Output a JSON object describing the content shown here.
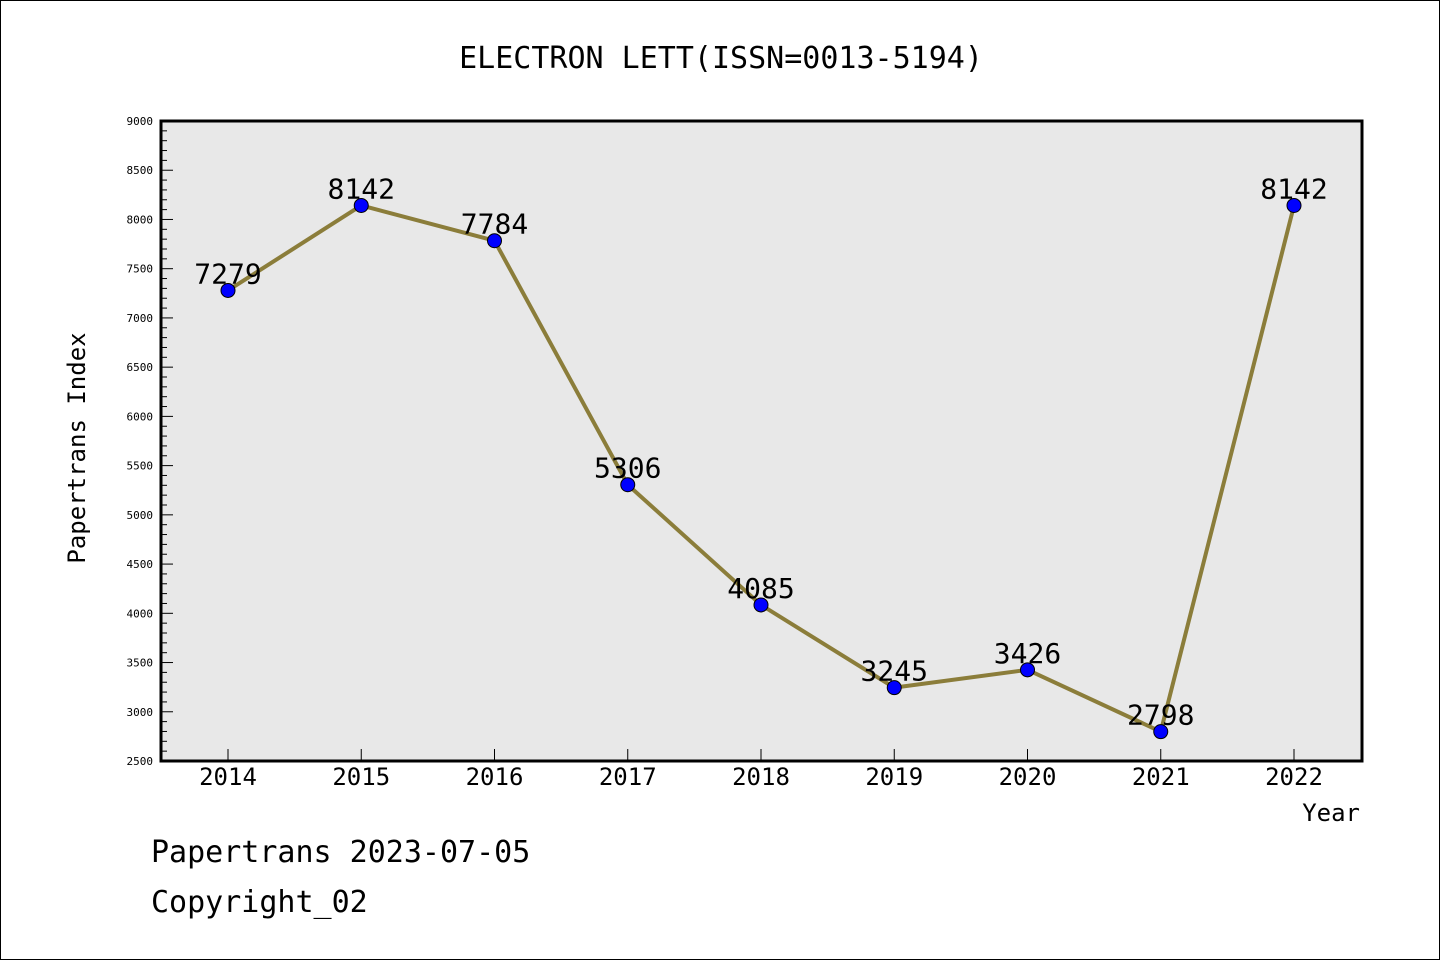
{
  "chart_data": {
    "type": "line",
    "title": "ELECTRON LETT(ISSN=0013-5194)",
    "xlabel": "Year",
    "ylabel": "Papertrans Index",
    "categories": [
      "2014",
      "2015",
      "2016",
      "2017",
      "2018",
      "2019",
      "2020",
      "2021",
      "2022"
    ],
    "series": [
      {
        "values": [
          7279,
          8142,
          7784,
          5306,
          4085,
          3245,
          3426,
          2798,
          8142
        ]
      }
    ],
    "data_labels": [
      "7279",
      "8142",
      "7784",
      "5306",
      "4085",
      "3245",
      "3426",
      "2798",
      "8142"
    ],
    "ylim": [
      2500,
      9000
    ],
    "yticks": [
      "2500",
      "3000",
      "3500",
      "4000",
      "4500",
      "5000",
      "5500",
      "6000",
      "6500",
      "7000",
      "7500",
      "8000",
      "8500",
      "9000"
    ],
    "grid": false,
    "legend": "none",
    "colors": {
      "plot_background": "#e8e8e8",
      "line": "#8b7d3a",
      "marker": "#0000ff"
    }
  },
  "footer": {
    "line1": "Papertrans 2023-07-05",
    "line2": "Copyright_02"
  }
}
